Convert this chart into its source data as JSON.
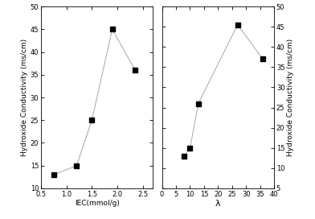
{
  "left_x": [
    0.75,
    1.2,
    1.5,
    1.9,
    2.35
  ],
  "left_y": [
    13,
    15,
    25,
    45,
    36
  ],
  "left_xlabel": "IEC(mmol/g)",
  "left_ylabel": "Hydroxide Conductivity (ms/cm)",
  "left_xlim": [
    0.5,
    2.7
  ],
  "left_ylim": [
    10,
    50
  ],
  "left_xticks": [
    0.5,
    1.0,
    1.5,
    2.0,
    2.5
  ],
  "left_yticks": [
    10,
    15,
    20,
    25,
    30,
    35,
    40,
    45,
    50
  ],
  "right_x": [
    8,
    10,
    13,
    27,
    36
  ],
  "right_y": [
    13,
    15,
    26,
    45.5,
    37
  ],
  "right_xlabel": "λ",
  "right_ylabel": "Hydroxide Conductivity (ms/cm)",
  "right_xlim": [
    0,
    40
  ],
  "right_ylim": [
    5,
    50
  ],
  "right_xticks": [
    0,
    5,
    10,
    15,
    20,
    25,
    30,
    35,
    40
  ],
  "right_yticks": [
    5,
    10,
    15,
    20,
    25,
    30,
    35,
    40,
    45,
    50
  ],
  "line_color": "#b0b0b0",
  "marker_color": "black",
  "marker": "s",
  "marker_size": 4,
  "line_width": 0.8,
  "background_color": "#ffffff",
  "tick_labelsize": 6,
  "axis_labelsize": 6.5
}
